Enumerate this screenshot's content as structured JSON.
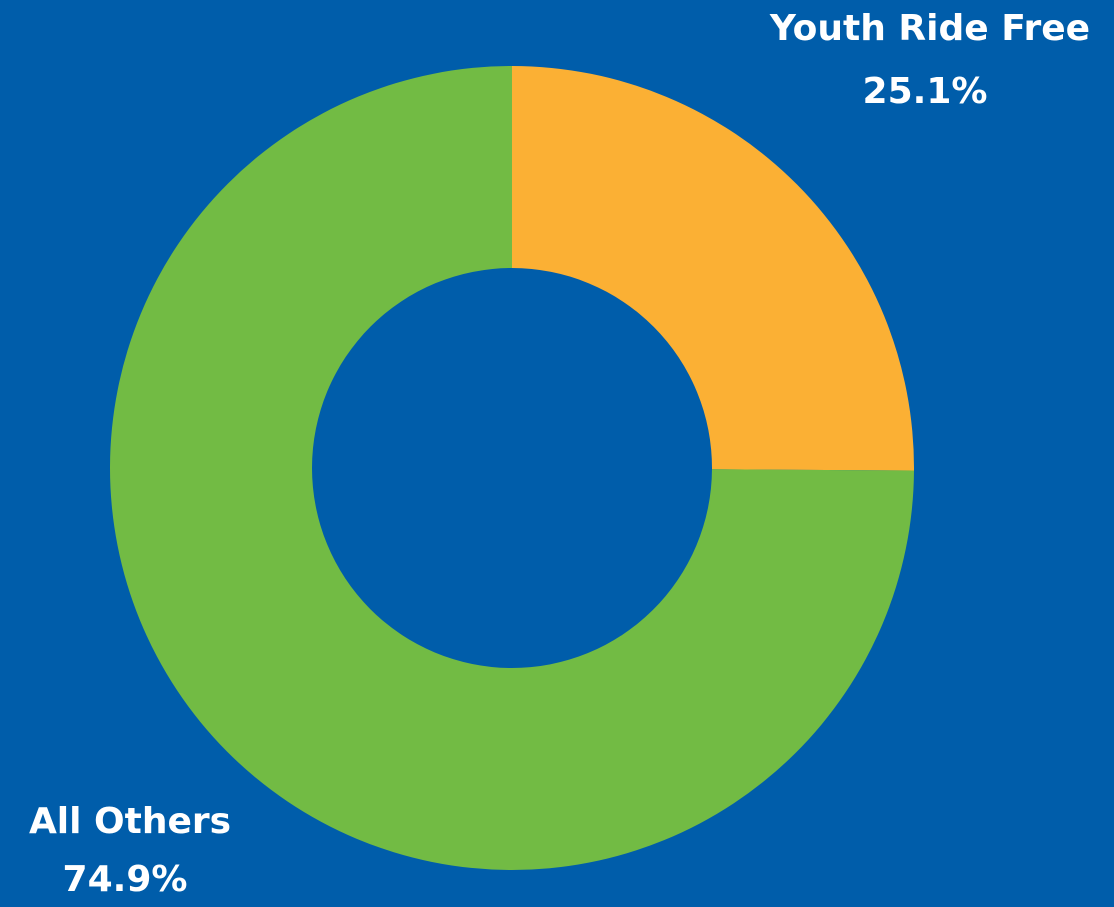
{
  "chart_data": {
    "type": "donut",
    "categories": [
      "Youth Ride Free",
      "All Others"
    ],
    "values": [
      25.1,
      74.9
    ],
    "value_labels": [
      "25.1%",
      "74.9%"
    ],
    "colors": [
      "#fbb034",
      "#72bb44"
    ]
  }
}
